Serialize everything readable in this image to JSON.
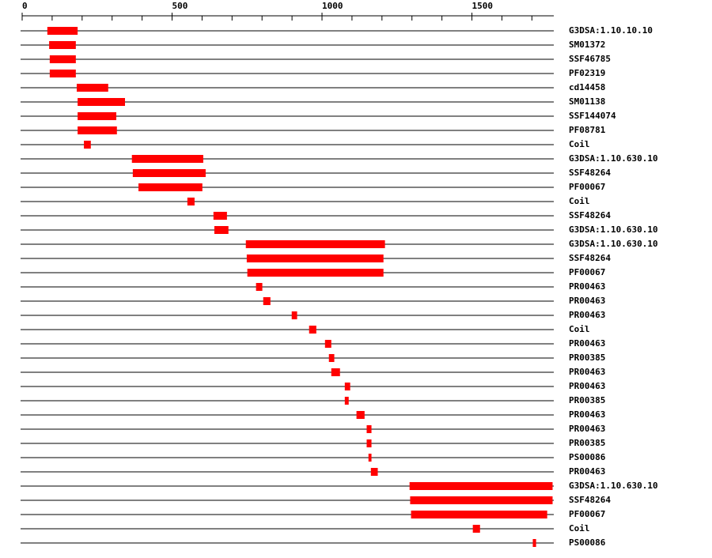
{
  "chart_data": {
    "type": "range",
    "categories": [
      "G3DSA:1.10.10.10",
      "SM01372",
      "SSF46785",
      "PF02319",
      "cd14458",
      "SM01138",
      "SSF144074",
      "PF08781",
      "Coil",
      "G3DSA:1.10.630.10",
      "SSF48264",
      "PF00067",
      "Coil",
      "SSF48264",
      "G3DSA:1.10.630.10",
      "G3DSA:1.10.630.10",
      "SSF48264",
      "PF00067",
      "PR00463",
      "PR00463",
      "PR00463",
      "Coil",
      "PR00463",
      "PR00385",
      "PR00463",
      "PR00463",
      "PR00385",
      "PR00463",
      "PR00463",
      "PR00385",
      "PS00086",
      "PR00463",
      "G3DSA:1.10.630.10",
      "SSF48264",
      "PF00067",
      "Coil",
      "PS00086"
    ],
    "starts": [
      84,
      90,
      92,
      92,
      182,
      185,
      185,
      185,
      206,
      366,
      369,
      388,
      551,
      638,
      641,
      746,
      749,
      751,
      780,
      804,
      899,
      957,
      1010,
      1023,
      1031,
      1076,
      1076,
      1115,
      1149,
      1149,
      1155,
      1163,
      1292,
      1294,
      1297,
      1503,
      1703
    ],
    "ends": [
      185,
      179,
      179,
      179,
      287,
      343,
      314,
      316,
      229,
      604,
      612,
      601,
      575,
      683,
      688,
      1210,
      1205,
      1205,
      801,
      828,
      917,
      981,
      1031,
      1041,
      1060,
      1094,
      1089,
      1142,
      1165,
      1165,
      1165,
      1186,
      1769,
      1769,
      1751,
      1527,
      1714
    ],
    "color": "#ff0000",
    "xlim": [
      0,
      1773
    ],
    "xticks": [
      0,
      500,
      1000,
      1500
    ],
    "xminorticks": [
      100,
      200,
      300,
      400,
      600,
      700,
      800,
      900,
      1100,
      1200,
      1300,
      1400,
      1600,
      1700
    ]
  }
}
